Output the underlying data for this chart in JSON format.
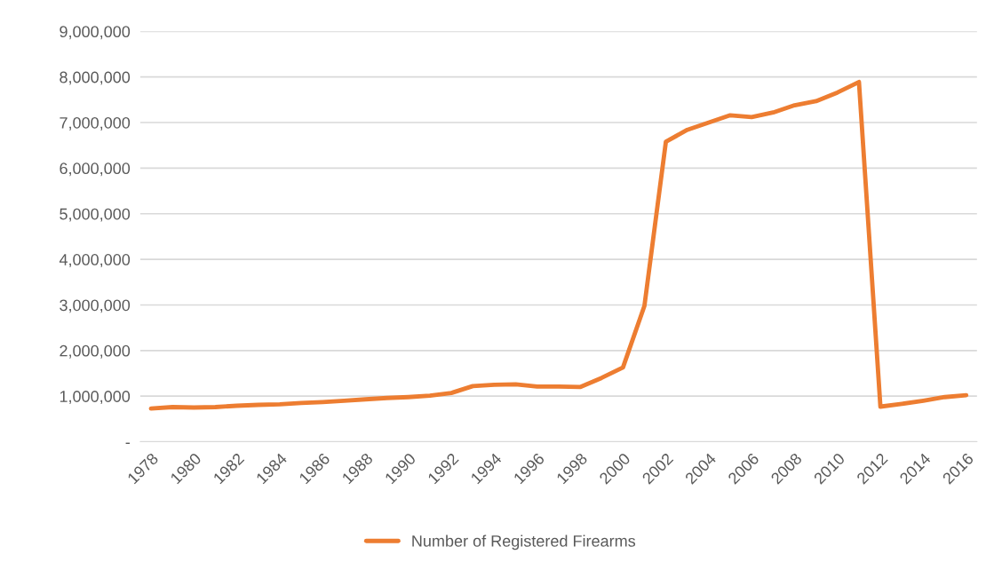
{
  "chart_data": {
    "type": "line",
    "x": [
      1978,
      1979,
      1980,
      1981,
      1982,
      1983,
      1984,
      1985,
      1986,
      1987,
      1988,
      1989,
      1990,
      1991,
      1992,
      1993,
      1994,
      1995,
      1996,
      1997,
      1998,
      1999,
      2000,
      2001,
      2002,
      2003,
      2004,
      2005,
      2006,
      2007,
      2008,
      2009,
      2010,
      2011,
      2012,
      2013,
      2014,
      2015,
      2016
    ],
    "series": [
      {
        "name": "Number of Registered Firearms",
        "color": "#ed7d31",
        "values": [
          730000,
          760000,
          750000,
          760000,
          790000,
          810000,
          820000,
          850000,
          870000,
          900000,
          930000,
          960000,
          980000,
          1010000,
          1070000,
          1220000,
          1250000,
          1260000,
          1210000,
          1210000,
          1200000,
          1400000,
          1630000,
          2980000,
          6580000,
          6840000,
          7000000,
          7160000,
          7120000,
          7220000,
          7380000,
          7470000,
          7660000,
          7890000,
          770000,
          830000,
          900000,
          980000,
          1020000
        ]
      }
    ],
    "xlim": [
      1977.5,
      2016.5
    ],
    "xticks": [
      1978,
      1980,
      1982,
      1984,
      1986,
      1988,
      1990,
      1992,
      1994,
      1996,
      1998,
      2000,
      2002,
      2004,
      2006,
      2008,
      2010,
      2012,
      2014,
      2016
    ],
    "ylim": [
      0,
      9000000
    ],
    "yticks": [
      {
        "value": 0,
        "label": "-"
      },
      {
        "value": 1000000,
        "label": "1,000,000"
      },
      {
        "value": 2000000,
        "label": "2,000,000"
      },
      {
        "value": 3000000,
        "label": "3,000,000"
      },
      {
        "value": 4000000,
        "label": "4,000,000"
      },
      {
        "value": 5000000,
        "label": "5,000,000"
      },
      {
        "value": 6000000,
        "label": "6,000,000"
      },
      {
        "value": 7000000,
        "label": "7,000,000"
      },
      {
        "value": 8000000,
        "label": "8,000,000"
      },
      {
        "value": 9000000,
        "label": "9,000,000"
      }
    ],
    "grid": "y",
    "legend": "bottom",
    "marker": "none",
    "line_style": "solid"
  }
}
